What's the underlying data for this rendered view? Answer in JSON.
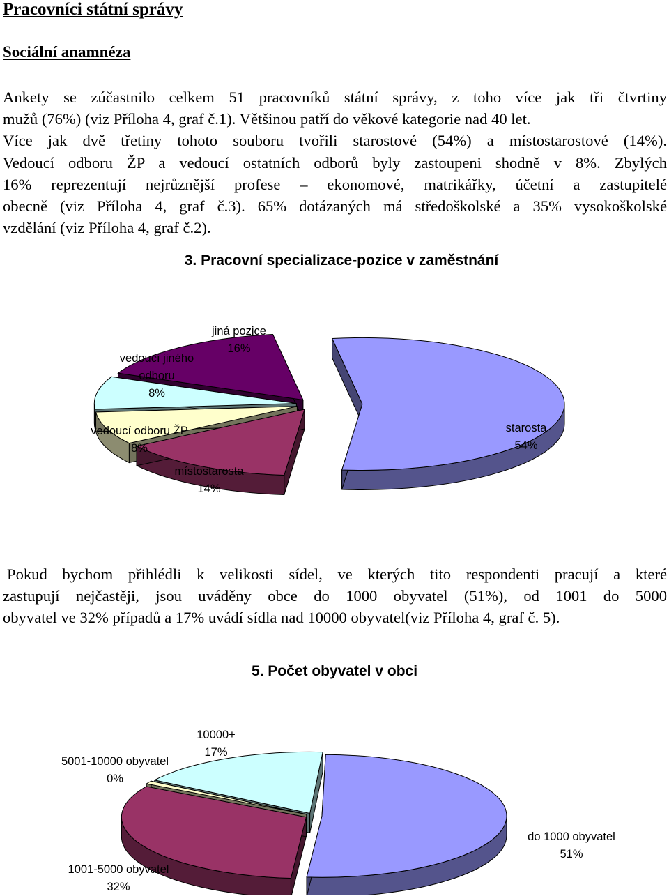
{
  "heading": "Pracovníci státní správy",
  "subheading": "Sociální anamnéza",
  "paragraph1": [
    "Ankety se zúčastnilo celkem 51 pracovníků státní správy, z toho více jak tři čtvrtiny",
    "mužů (76%) (viz Příloha 4, graf č.1). Většinou patří do věkové kategorie nad 40 let.",
    "Více jak dvě třetiny tohoto souboru tvořili starostové (54%) a místostarostové (14%).",
    "Vedoucí odboru ŽP a vedoucí ostatních odborů byly zastoupeni shodně v 8%. Zbylých",
    "16% reprezentují nejrůznější profese – ekonomové, matrikářky, účetní a zastupitelé",
    "obecně (viz Příloha 4, graf č.3). 65% dotázaných má středoškolské a 35% vysokoškolské",
    "vzdělání (viz Příloha 4, graf č.2)."
  ],
  "paragraph2": [
    "Pokud bychom přihlédli k velikosti sídel, ve kterých tito respondenti pracují a které",
    "zastupují nejčastěji, jsou uváděny obce do 1000 obyvatel (51%), od 1001 do 5000",
    "obyvatel ve 32% případů a 17% uvádí sídla nad 10000 obyvatel(viz Příloha 4, graf č. 5)."
  ],
  "chart_data": [
    {
      "type": "pie",
      "title": "3. Pracovní specializace-pozice v zaměstnání",
      "slices": [
        {
          "label": "starosta",
          "value": 54,
          "value_label": "54%",
          "color": "#9999ff"
        },
        {
          "label": "místostarosta",
          "value": 14,
          "value_label": "14%",
          "color": "#993366"
        },
        {
          "label": "vedoucí odboru ŽP",
          "value": 8,
          "value_label": "8%",
          "color": "#ffffcc"
        },
        {
          "label": "vedoucí jiného odboru",
          "label_lines": [
            "vedoucí jiného",
            "odboru"
          ],
          "value": 8,
          "value_label": "8%",
          "color": "#ccffff"
        },
        {
          "label": "jiná pozice",
          "value": 16,
          "value_label": "16%",
          "color": "#660066"
        }
      ]
    },
    {
      "type": "pie",
      "title": "5. Počet obyvatel v obci",
      "slices": [
        {
          "label": "do 1000 obyvatel",
          "value": 51,
          "value_label": "51%",
          "color": "#9999ff"
        },
        {
          "label": "1001-5000 obyvatel",
          "value": 32,
          "value_label": "32%",
          "color": "#993366"
        },
        {
          "label": "5001-10000 obyvatel",
          "value": 0,
          "value_label": "0%",
          "color": "#ffffcc"
        },
        {
          "label": "10000+",
          "value": 17,
          "value_label": "17%",
          "color": "#ccffff"
        }
      ]
    }
  ]
}
